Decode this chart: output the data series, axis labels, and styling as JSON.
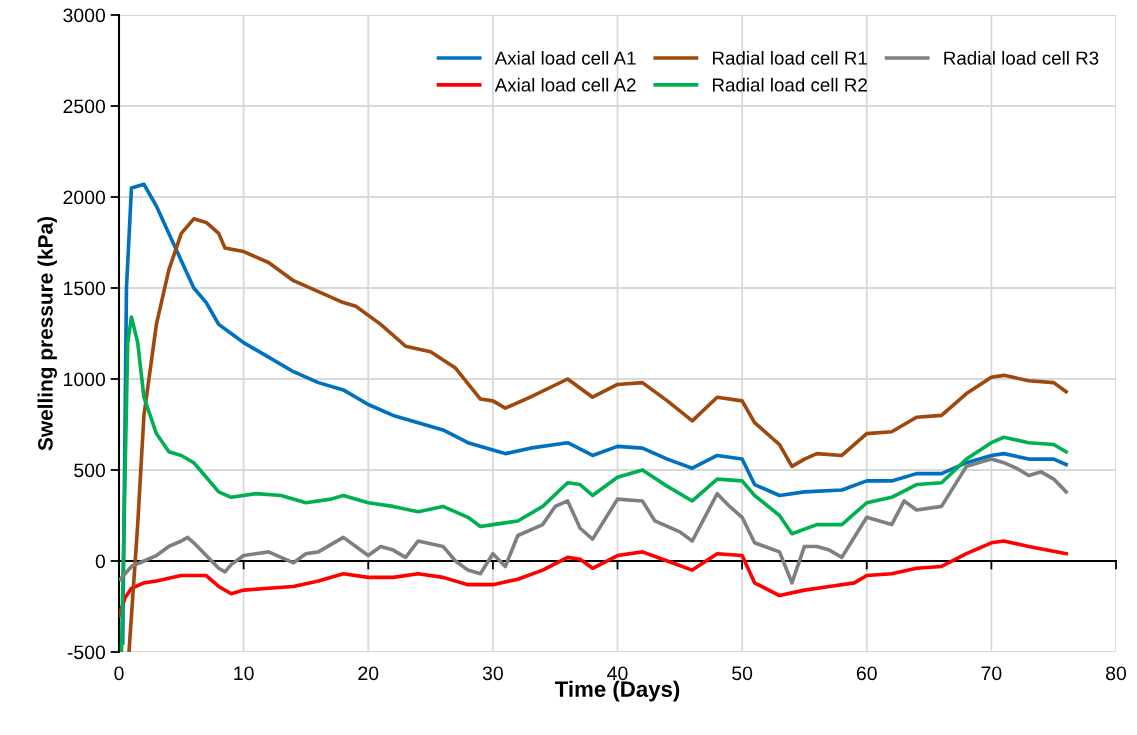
{
  "chart_data": {
    "type": "line",
    "xlabel": "Time (Days)",
    "ylabel": "Swelling pressure (kPa)",
    "xlim": [
      0,
      80
    ],
    "ylim": [
      -500,
      3000
    ],
    "xticks": [
      0,
      10,
      20,
      30,
      40,
      50,
      60,
      70,
      80
    ],
    "yticks": [
      -500,
      0,
      500,
      1000,
      1500,
      2000,
      2500,
      3000
    ],
    "grid": true,
    "legend": "top right",
    "marker": "none",
    "line_style": "solid",
    "series": [
      {
        "name": "Axial load cell A1",
        "color": "#0070c0",
        "x": [
          0.3,
          0.6,
          1,
          2,
          3,
          4,
          5,
          6,
          7,
          8,
          9,
          10,
          12,
          14,
          16,
          18,
          20,
          22,
          24,
          26,
          28,
          30,
          31,
          33,
          36,
          38,
          40,
          42,
          44,
          46,
          48,
          50,
          51,
          53,
          55,
          58,
          60,
          62,
          64,
          66,
          68,
          70,
          71,
          73,
          75,
          76
        ],
        "values": [
          -450,
          1500,
          2050,
          2070,
          1950,
          1800,
          1650,
          1500,
          1420,
          1300,
          1250,
          1200,
          1120,
          1040,
          980,
          940,
          860,
          800,
          760,
          720,
          650,
          610,
          590,
          620,
          650,
          580,
          630,
          620,
          560,
          510,
          580,
          560,
          420,
          360,
          380,
          390,
          440,
          440,
          480,
          480,
          540,
          580,
          590,
          560,
          560,
          530
        ]
      },
      {
        "name": "Axial load cell A2",
        "color": "#ff0000",
        "x": [
          0,
          0.5,
          1,
          2,
          3,
          5,
          7,
          8,
          9,
          10,
          12,
          14,
          16,
          18,
          20,
          22,
          24,
          26,
          28,
          30,
          32,
          34,
          36,
          37,
          38,
          40,
          42,
          44,
          46,
          48,
          50,
          51,
          53,
          55,
          57,
          59,
          60,
          62,
          64,
          66,
          68,
          70,
          71,
          73,
          76
        ],
        "values": [
          -300,
          -200,
          -150,
          -120,
          -110,
          -80,
          -80,
          -140,
          -180,
          -160,
          -150,
          -140,
          -110,
          -70,
          -90,
          -90,
          -70,
          -90,
          -130,
          -130,
          -100,
          -50,
          20,
          10,
          -40,
          30,
          50,
          0,
          -50,
          40,
          30,
          -120,
          -190,
          -160,
          -140,
          -120,
          -80,
          -70,
          -40,
          -30,
          40,
          100,
          110,
          80,
          40
        ]
      },
      {
        "name": "Radial load cell R1",
        "color": "#9e480e",
        "x": [
          0.8,
          1.5,
          2,
          3,
          4,
          5,
          6,
          7,
          8,
          8.5,
          10,
          12,
          14,
          16,
          18,
          19,
          21,
          23,
          25,
          27,
          29,
          30,
          31,
          33,
          36,
          38,
          40,
          42,
          44,
          46,
          48,
          50,
          51,
          53,
          54,
          55,
          56,
          58,
          60,
          62,
          64,
          66,
          68,
          70,
          71,
          73,
          75,
          76
        ],
        "values": [
          -500,
          200,
          800,
          1300,
          1600,
          1800,
          1880,
          1860,
          1800,
          1720,
          1700,
          1640,
          1540,
          1480,
          1420,
          1400,
          1300,
          1180,
          1150,
          1060,
          890,
          880,
          840,
          900,
          1000,
          900,
          970,
          980,
          880,
          770,
          900,
          880,
          760,
          640,
          520,
          560,
          590,
          580,
          700,
          710,
          790,
          800,
          920,
          1010,
          1020,
          990,
          980,
          930
        ]
      },
      {
        "name": "Radial load cell R2",
        "color": "#00b050",
        "x": [
          0.2,
          0.7,
          1,
          1.5,
          2,
          3,
          4,
          5,
          6,
          7,
          8,
          9,
          11,
          13,
          15,
          17,
          18,
          20,
          22,
          24,
          26,
          28,
          29,
          30,
          32,
          34,
          36,
          37,
          38,
          40,
          42,
          44,
          46,
          48,
          50,
          51,
          53,
          54,
          56,
          58,
          60,
          62,
          64,
          66,
          68,
          70,
          71,
          73,
          75,
          76
        ],
        "values": [
          -500,
          1200,
          1340,
          1200,
          900,
          700,
          600,
          580,
          540,
          460,
          380,
          350,
          370,
          360,
          320,
          340,
          360,
          320,
          300,
          270,
          300,
          240,
          190,
          200,
          220,
          300,
          430,
          420,
          360,
          460,
          500,
          410,
          330,
          450,
          440,
          360,
          250,
          150,
          200,
          200,
          320,
          350,
          420,
          430,
          560,
          650,
          680,
          650,
          640,
          600
        ]
      },
      {
        "name": "Radial load cell R3",
        "color": "#7f7f7f",
        "x": [
          0.1,
          1,
          2,
          3,
          4,
          5,
          5.5,
          6,
          7,
          8,
          8.5,
          9,
          10,
          12,
          13,
          14,
          15,
          16,
          18,
          19,
          20,
          21,
          22,
          23,
          24,
          26,
          27,
          28,
          29,
          30,
          31,
          32,
          34,
          35,
          36,
          37,
          38,
          40,
          42,
          43,
          45,
          46,
          48,
          49,
          50,
          51,
          53,
          54,
          55,
          56,
          57,
          58,
          60,
          62,
          63,
          64,
          66,
          68,
          70,
          71,
          72,
          73,
          74,
          75,
          76
        ],
        "values": [
          -100,
          -30,
          0,
          30,
          80,
          110,
          130,
          100,
          30,
          -40,
          -60,
          -20,
          30,
          50,
          20,
          -10,
          40,
          50,
          130,
          80,
          30,
          80,
          60,
          20,
          110,
          80,
          0,
          -50,
          -70,
          40,
          -30,
          140,
          200,
          300,
          330,
          180,
          120,
          340,
          330,
          220,
          160,
          110,
          370,
          300,
          240,
          100,
          50,
          -120,
          80,
          80,
          60,
          20,
          240,
          200,
          330,
          280,
          300,
          520,
          560,
          540,
          510,
          470,
          490,
          450,
          380
        ]
      }
    ]
  }
}
